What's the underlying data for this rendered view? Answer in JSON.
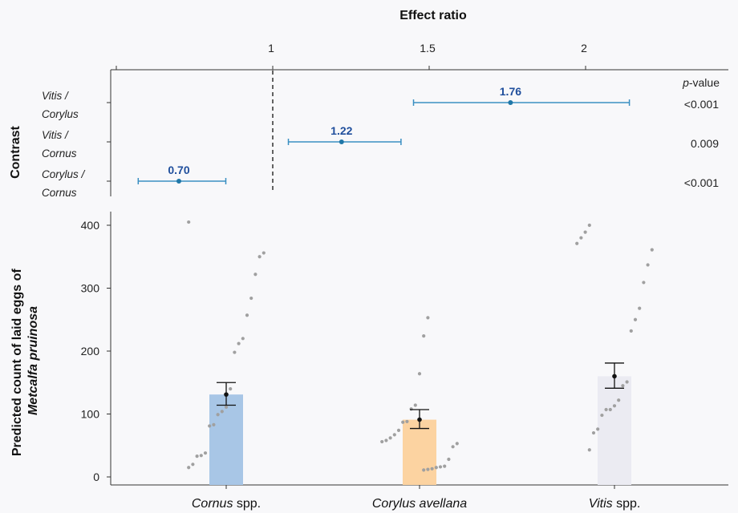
{
  "chart_data": [
    {
      "type": "forest",
      "title": "Effect ratio",
      "ylabel": "Contrast",
      "xticks": [
        "1",
        "1.5",
        "2"
      ],
      "xlim": [
        0.5,
        2.4
      ],
      "reference_value": 1,
      "pvalue_header_italic": "p",
      "pvalue_header_rest": "-value",
      "contrasts": [
        {
          "line1": "Vitis /",
          "line2": "Corylus",
          "estimate": 1.76,
          "estimate_label": "1.76",
          "lower": 1.45,
          "upper": 2.14,
          "pvalue": "<0.001"
        },
        {
          "line1": "Vitis /",
          "line2": "Cornus",
          "estimate": 1.22,
          "estimate_label": "1.22",
          "lower": 1.05,
          "upper": 1.41,
          "pvalue": "0.009"
        },
        {
          "line1": "Corylus /",
          "line2": "Cornus",
          "estimate": 0.7,
          "estimate_label": "0.70",
          "lower": 0.57,
          "upper": 0.85,
          "pvalue": "<0.001"
        }
      ]
    },
    {
      "type": "bar",
      "ylabel_line1": "Predicted count of laid eggs of",
      "ylabel_line2": "Metcalfa pruinosa",
      "ylim": [
        0,
        420
      ],
      "yticks": [
        "0",
        "100",
        "200",
        "300",
        "400"
      ],
      "categories": [
        {
          "name": "Cornus",
          "suffix": " spp.",
          "mean": 131,
          "lower": 114,
          "upper": 150,
          "color": "#a8c6e6",
          "points": [
            405,
            356,
            350,
            322,
            284,
            257,
            220,
            212,
            198,
            140,
            111,
            104,
            99,
            83,
            81,
            38,
            34,
            33,
            20,
            15
          ]
        },
        {
          "name": "Corylus avellana",
          "suffix": "",
          "mean": 91,
          "lower": 77,
          "upper": 107,
          "color": "#fcd3a1",
          "points": [
            253,
            224,
            164,
            114,
            108,
            88,
            87,
            74,
            67,
            62,
            58,
            56,
            53,
            48,
            28,
            17,
            16,
            15,
            13,
            12,
            11
          ]
        },
        {
          "name": "Vitis",
          "suffix": " spp.",
          "mean": 160,
          "lower": 141,
          "upper": 181,
          "color": "#ebebf2",
          "points": [
            400,
            389,
            380,
            371,
            361,
            337,
            309,
            268,
            250,
            232,
            151,
            145,
            122,
            113,
            107,
            107,
            98,
            76,
            70,
            43
          ]
        }
      ]
    }
  ]
}
